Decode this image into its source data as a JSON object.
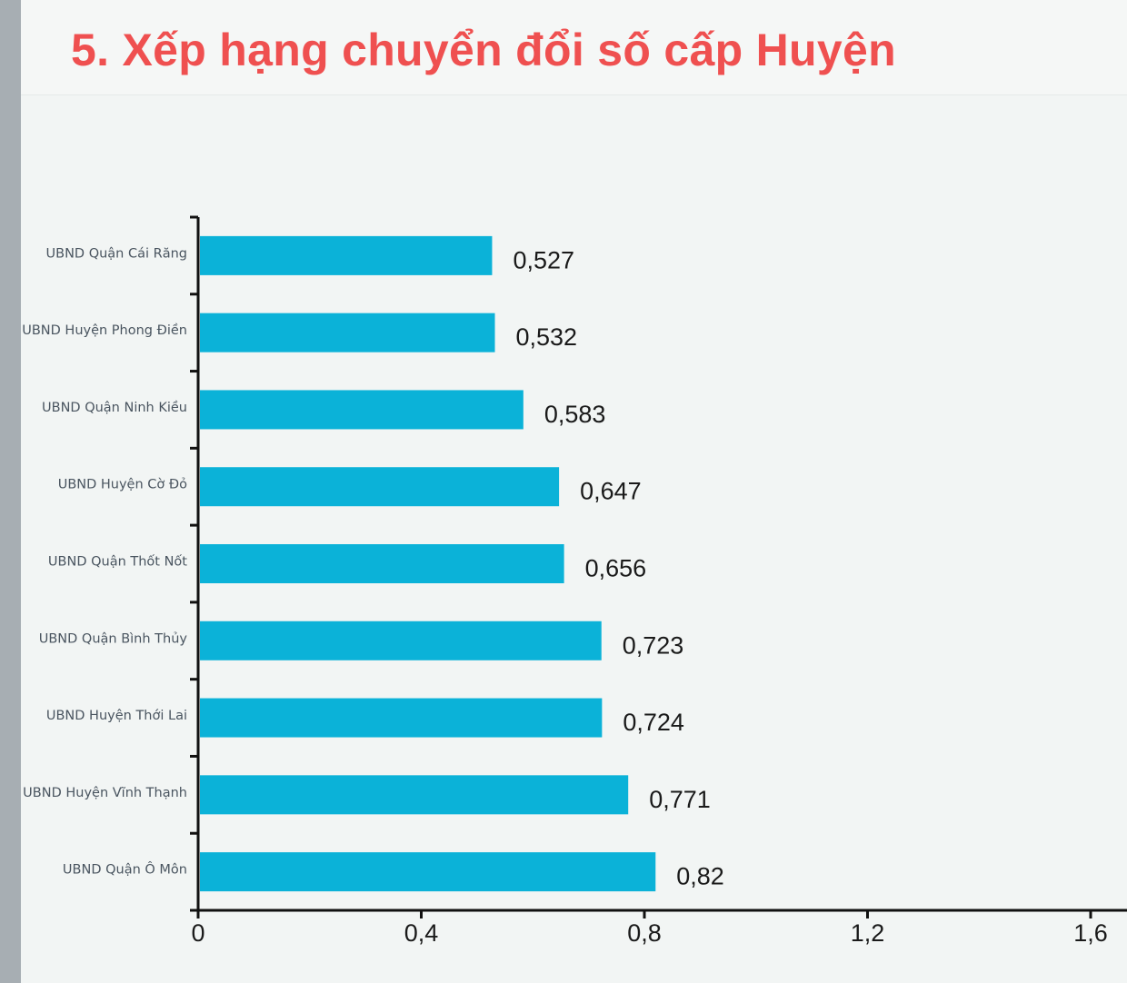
{
  "title": "5. Xếp hạng chuyển đổi số cấp Huyện",
  "chart_data": {
    "type": "bar",
    "orientation": "horizontal",
    "categories": [
      "UBND Quận Cái Răng",
      "UBND Huyện Phong Điền",
      "UBND Quận Ninh Kiều",
      "UBND Huyện Cờ Đỏ",
      "UBND Quận Thốt Nốt",
      "UBND Quận Bình Thủy",
      "UBND Huyện Thới Lai",
      "UBND Huyện Vĩnh Thạnh",
      "UBND Quận Ô Môn"
    ],
    "values": [
      0.527,
      0.532,
      0.583,
      0.647,
      0.656,
      0.723,
      0.724,
      0.771,
      0.82
    ],
    "value_labels": [
      "0,527",
      "0,532",
      "0,583",
      "0,647",
      "0,656",
      "0,723",
      "0,724",
      "0,771",
      "0,82"
    ],
    "xlim": [
      0,
      1.6
    ],
    "x_ticks": [
      0,
      0.4,
      0.8,
      1.2,
      1.6
    ],
    "x_tick_labels": [
      "0",
      "0,4",
      "0,8",
      "1,2",
      "1,6"
    ],
    "grid": false,
    "legend": "none",
    "bar_color": "#0bb2d8",
    "title_color": "#ef5050"
  }
}
